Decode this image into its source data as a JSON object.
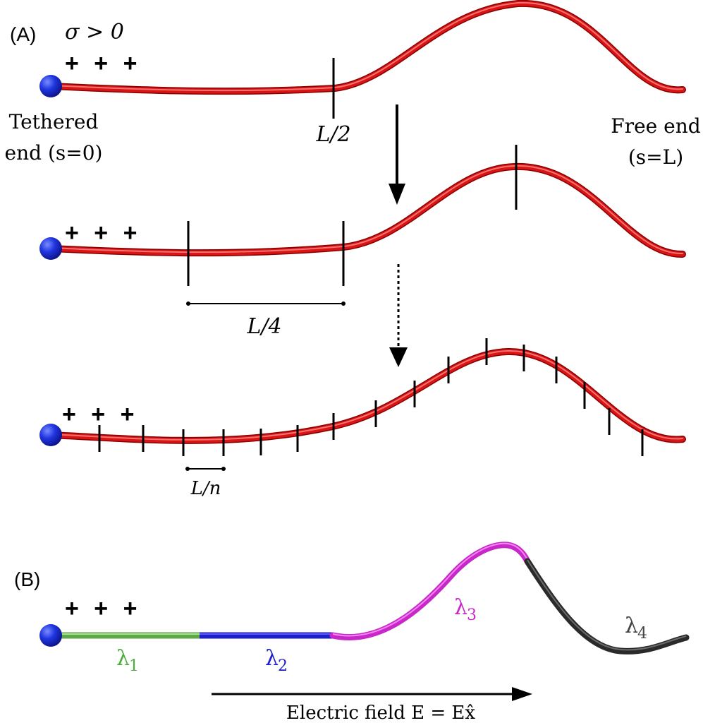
{
  "panel_a": {
    "label": "(A)",
    "condition": "σ > 0",
    "charges": "+ + +",
    "tethered_label_line1": "Tethered",
    "tethered_label_line2": "end (s=0)",
    "free_label_line1": "Free end",
    "free_label_line2": "(s=L)",
    "label_half": "L/2",
    "label_quarter": "L/4",
    "label_nth": "L/n"
  },
  "panel_b": {
    "label": "(B)",
    "charges": "+ + +",
    "segments": [
      {
        "symbol": "λ",
        "index": "1",
        "color": "#4caf3c"
      },
      {
        "symbol": "λ",
        "index": "2",
        "color": "#1f1fc8"
      },
      {
        "symbol": "λ",
        "index": "3",
        "color": "#c828c8"
      },
      {
        "symbol": "λ",
        "index": "4",
        "color": "#444444"
      }
    ],
    "field_label": "Electric field E = Ex̂"
  },
  "colors": {
    "polymer": "#d81414",
    "polymer_highlight": "#ff8a8a",
    "bead": "#1428d8",
    "ink": "#000000"
  }
}
